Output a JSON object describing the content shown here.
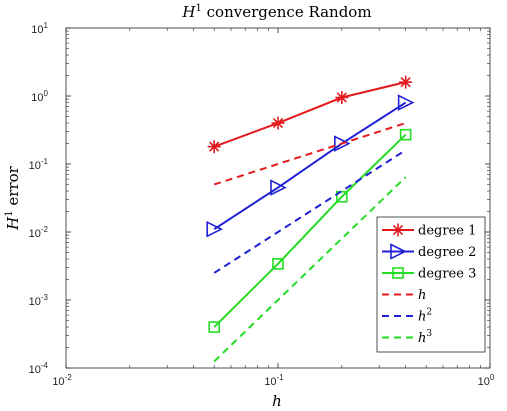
{
  "chart_data": {
    "type": "line",
    "title": "H¹ convergence Random",
    "title_parts": {
      "sym": "H",
      "sup": "1",
      "rest": " convergence Random"
    },
    "xlabel": "h",
    "ylabel": "H¹ error",
    "ylabel_parts": {
      "sym": "H",
      "sup": "1",
      "rest": " error"
    },
    "x_scale": "log",
    "y_scale": "log",
    "xlim": [
      0.01,
      1
    ],
    "ylim": [
      0.0001,
      10
    ],
    "x_ticks": [
      0.01,
      0.1,
      1
    ],
    "x_tick_labels": [
      {
        "base": "10",
        "exp": "-2"
      },
      {
        "base": "10",
        "exp": "-1"
      },
      {
        "base": "10",
        "exp": "0"
      }
    ],
    "y_ticks": [
      0.0001,
      0.001,
      0.01,
      0.1,
      1,
      10
    ],
    "y_tick_labels": [
      {
        "base": "10",
        "exp": "-4"
      },
      {
        "base": "10",
        "exp": "-3"
      },
      {
        "base": "10",
        "exp": "-2"
      },
      {
        "base": "10",
        "exp": "-1"
      },
      {
        "base": "10",
        "exp": "0"
      },
      {
        "base": "10",
        "exp": "1"
      }
    ],
    "grid": false,
    "legend_position": "bottom-right",
    "x": [
      0.05,
      0.1,
      0.2,
      0.4
    ],
    "series": [
      {
        "name": "degree 1",
        "values": [
          0.18,
          0.4,
          0.95,
          1.6
        ],
        "color": "#e41a1c",
        "style": "solid",
        "marker": "asterisk"
      },
      {
        "name": "degree 2",
        "values": [
          0.011,
          0.045,
          0.2,
          0.8
        ],
        "color": "#1f1fd6",
        "style": "solid",
        "marker": "triangle-right"
      },
      {
        "name": "degree 3",
        "values": [
          0.0004,
          0.0034,
          0.033,
          0.27
        ],
        "color": "#22dd22",
        "style": "solid",
        "marker": "square"
      },
      {
        "name": "h",
        "values": [
          0.05,
          0.1,
          0.2,
          0.4
        ],
        "color": "#e41a1c",
        "style": "dashed",
        "marker": "none"
      },
      {
        "name": "h²",
        "legend_parts": {
          "sym": "h",
          "sup": "2"
        },
        "values": [
          0.0025,
          0.01,
          0.04,
          0.16
        ],
        "color": "#1f1fd6",
        "style": "dashed",
        "marker": "none"
      },
      {
        "name": "h³",
        "legend_parts": {
          "sym": "h",
          "sup": "3"
        },
        "values": [
          0.000125,
          0.001,
          0.008,
          0.064
        ],
        "color": "#22dd22",
        "style": "dashed",
        "marker": "none"
      }
    ]
  }
}
